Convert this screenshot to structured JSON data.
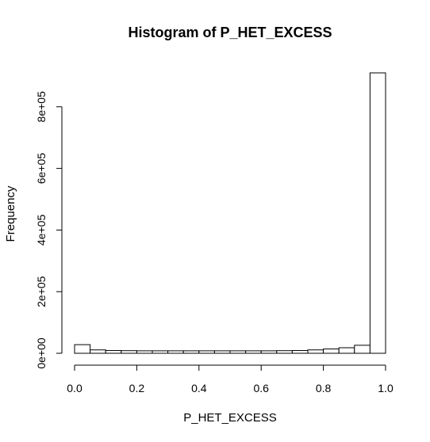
{
  "chart_data": {
    "type": "bar",
    "title": "Histogram of P_HET_EXCESS",
    "xlabel": "P_HET_EXCESS",
    "ylabel": "Frequency",
    "bin_edges": [
      0.0,
      0.05,
      0.1,
      0.15,
      0.2,
      0.25,
      0.3,
      0.35,
      0.4,
      0.45,
      0.5,
      0.55,
      0.6,
      0.65,
      0.7,
      0.75,
      0.8,
      0.85,
      0.9,
      0.95,
      1.0
    ],
    "values": [
      28000,
      11000,
      9000,
      8500,
      8000,
      8000,
      8000,
      8000,
      8000,
      8000,
      8000,
      8000,
      8000,
      8500,
      9000,
      11000,
      14000,
      18000,
      26000,
      910000
    ],
    "xlim": [
      0,
      1
    ],
    "ylim": [
      0,
      910000
    ],
    "x_ticks": [
      0.0,
      0.2,
      0.4,
      0.6,
      0.8,
      1.0
    ],
    "x_tick_labels": [
      "0.0",
      "0.2",
      "0.4",
      "0.6",
      "0.8",
      "1.0"
    ],
    "y_ticks": [
      0,
      200000,
      400000,
      600000,
      800000
    ],
    "y_tick_labels": [
      "0e+00",
      "2e+05",
      "4e+05",
      "6e+05",
      "8e+05"
    ],
    "grid": false,
    "legend": "none"
  }
}
